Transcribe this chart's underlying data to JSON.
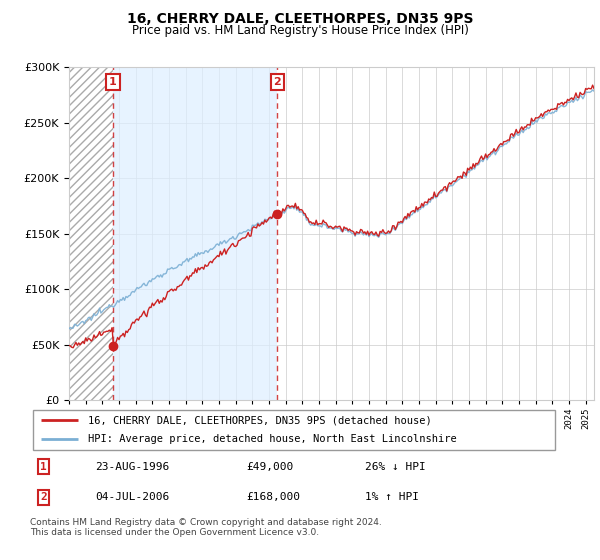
{
  "title": "16, CHERRY DALE, CLEETHORPES, DN35 9PS",
  "subtitle": "Price paid vs. HM Land Registry's House Price Index (HPI)",
  "sale1_date": "23-AUG-1996",
  "sale1_price": 49000,
  "sale1_label": "26% ↓ HPI",
  "sale2_date": "04-JUL-2006",
  "sale2_price": 168000,
  "sale2_label": "1% ↑ HPI",
  "sale1_year": 1996.64,
  "sale2_year": 2006.5,
  "legend_line1": "16, CHERRY DALE, CLEETHORPES, DN35 9PS (detached house)",
  "legend_line2": "HPI: Average price, detached house, North East Lincolnshire",
  "footer": "Contains HM Land Registry data © Crown copyright and database right 2024.\nThis data is licensed under the Open Government Licence v3.0.",
  "hpi_color": "#7bafd4",
  "price_color": "#cc2222",
  "shade_color": "#ddeeff",
  "marker_color": "#cc2222",
  "dashed_color": "#cc2222",
  "ylim_max": 300000,
  "ylim_min": 0,
  "xmin": 1994,
  "xmax": 2025.5
}
